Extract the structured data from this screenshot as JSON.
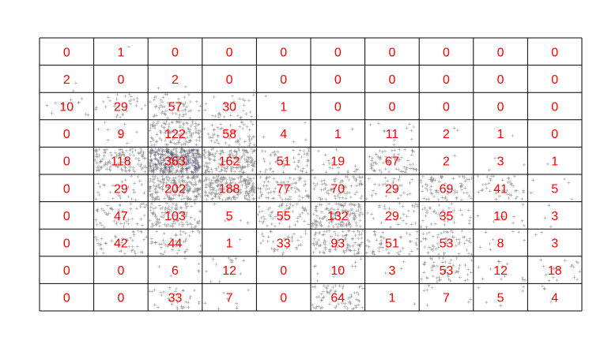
{
  "chart_data": {
    "type": "heatmap",
    "rows": 10,
    "cols": 10,
    "title": "",
    "xlabel": "",
    "ylabel": "",
    "grid": true,
    "label_color": "#ff0000",
    "point_color": "#808080",
    "dense_color": "#3a3a78",
    "values": [
      [
        0,
        1,
        0,
        0,
        0,
        0,
        0,
        0,
        0,
        0
      ],
      [
        2,
        0,
        2,
        0,
        0,
        0,
        0,
        0,
        0,
        0
      ],
      [
        10,
        29,
        57,
        30,
        1,
        0,
        0,
        0,
        0,
        0
      ],
      [
        0,
        9,
        122,
        58,
        4,
        1,
        11,
        2,
        1,
        0
      ],
      [
        0,
        118,
        363,
        162,
        51,
        19,
        67,
        2,
        3,
        1
      ],
      [
        0,
        29,
        202,
        188,
        77,
        70,
        29,
        69,
        41,
        5
      ],
      [
        0,
        47,
        103,
        5,
        55,
        132,
        29,
        35,
        10,
        3
      ],
      [
        0,
        42,
        44,
        1,
        33,
        93,
        51,
        53,
        8,
        3
      ],
      [
        0,
        0,
        6,
        12,
        0,
        10,
        3,
        53,
        12,
        18
      ],
      [
        0,
        0,
        33,
        7,
        0,
        64,
        1,
        7,
        5,
        4
      ]
    ]
  }
}
